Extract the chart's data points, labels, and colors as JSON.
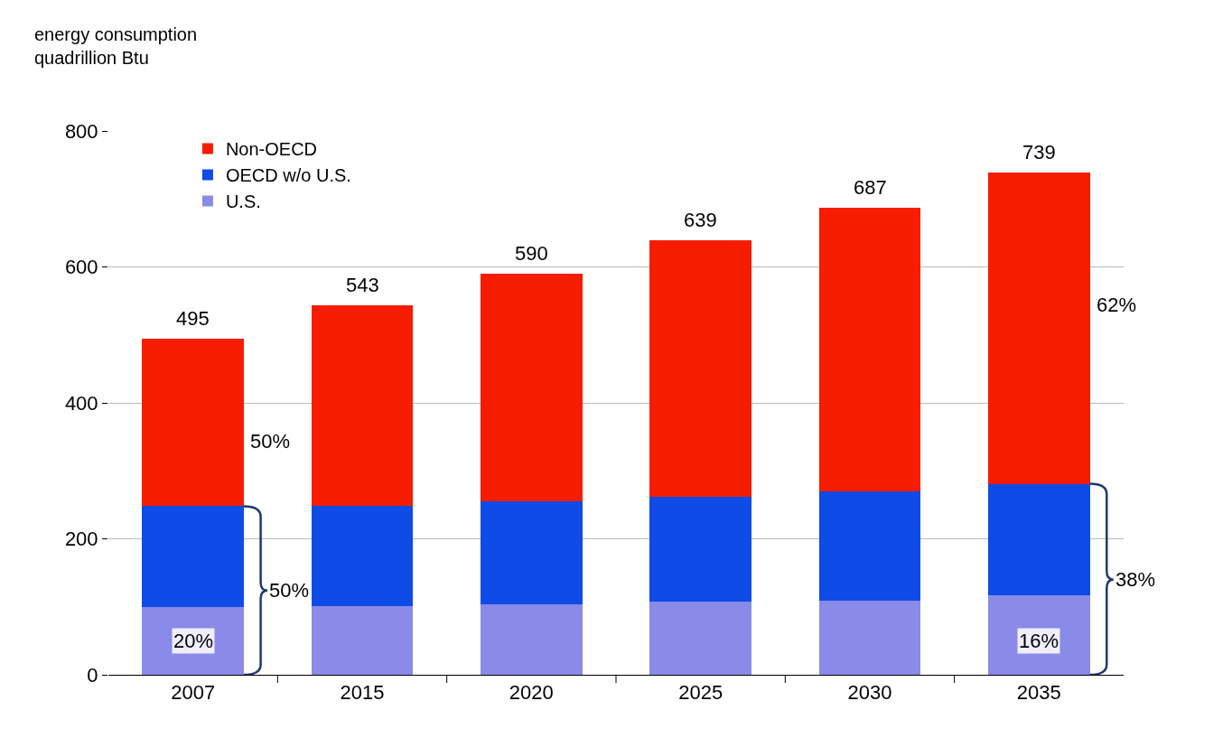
{
  "chart_data": {
    "type": "bar",
    "stacked": true,
    "ylabel": "energy consumption\nquadrillion Btu",
    "categories": [
      "2007",
      "2015",
      "2020",
      "2025",
      "2030",
      "2035"
    ],
    "series": [
      {
        "name": "U.S.",
        "color": "#8a8ae8",
        "values": [
          100,
          101,
          103,
          107,
          109,
          117
        ]
      },
      {
        "name": "OECD w/o U.S.",
        "color": "#0f4be6",
        "values": [
          148,
          147,
          152,
          155,
          161,
          164
        ]
      },
      {
        "name": "Non-OECD",
        "color": "#f61c00",
        "values": [
          247,
          295,
          335,
          377,
          417,
          458
        ]
      }
    ],
    "totals": [
      "495",
      "543",
      "590",
      "639",
      "687",
      "739"
    ],
    "annotations": [
      "50%",
      "50%",
      "20%",
      "62%",
      "38%",
      "16%"
    ],
    "ylim": [
      0,
      800
    ],
    "yticks": [
      0,
      200,
      400,
      600,
      800
    ],
    "grid": "y",
    "legend": "top left"
  }
}
